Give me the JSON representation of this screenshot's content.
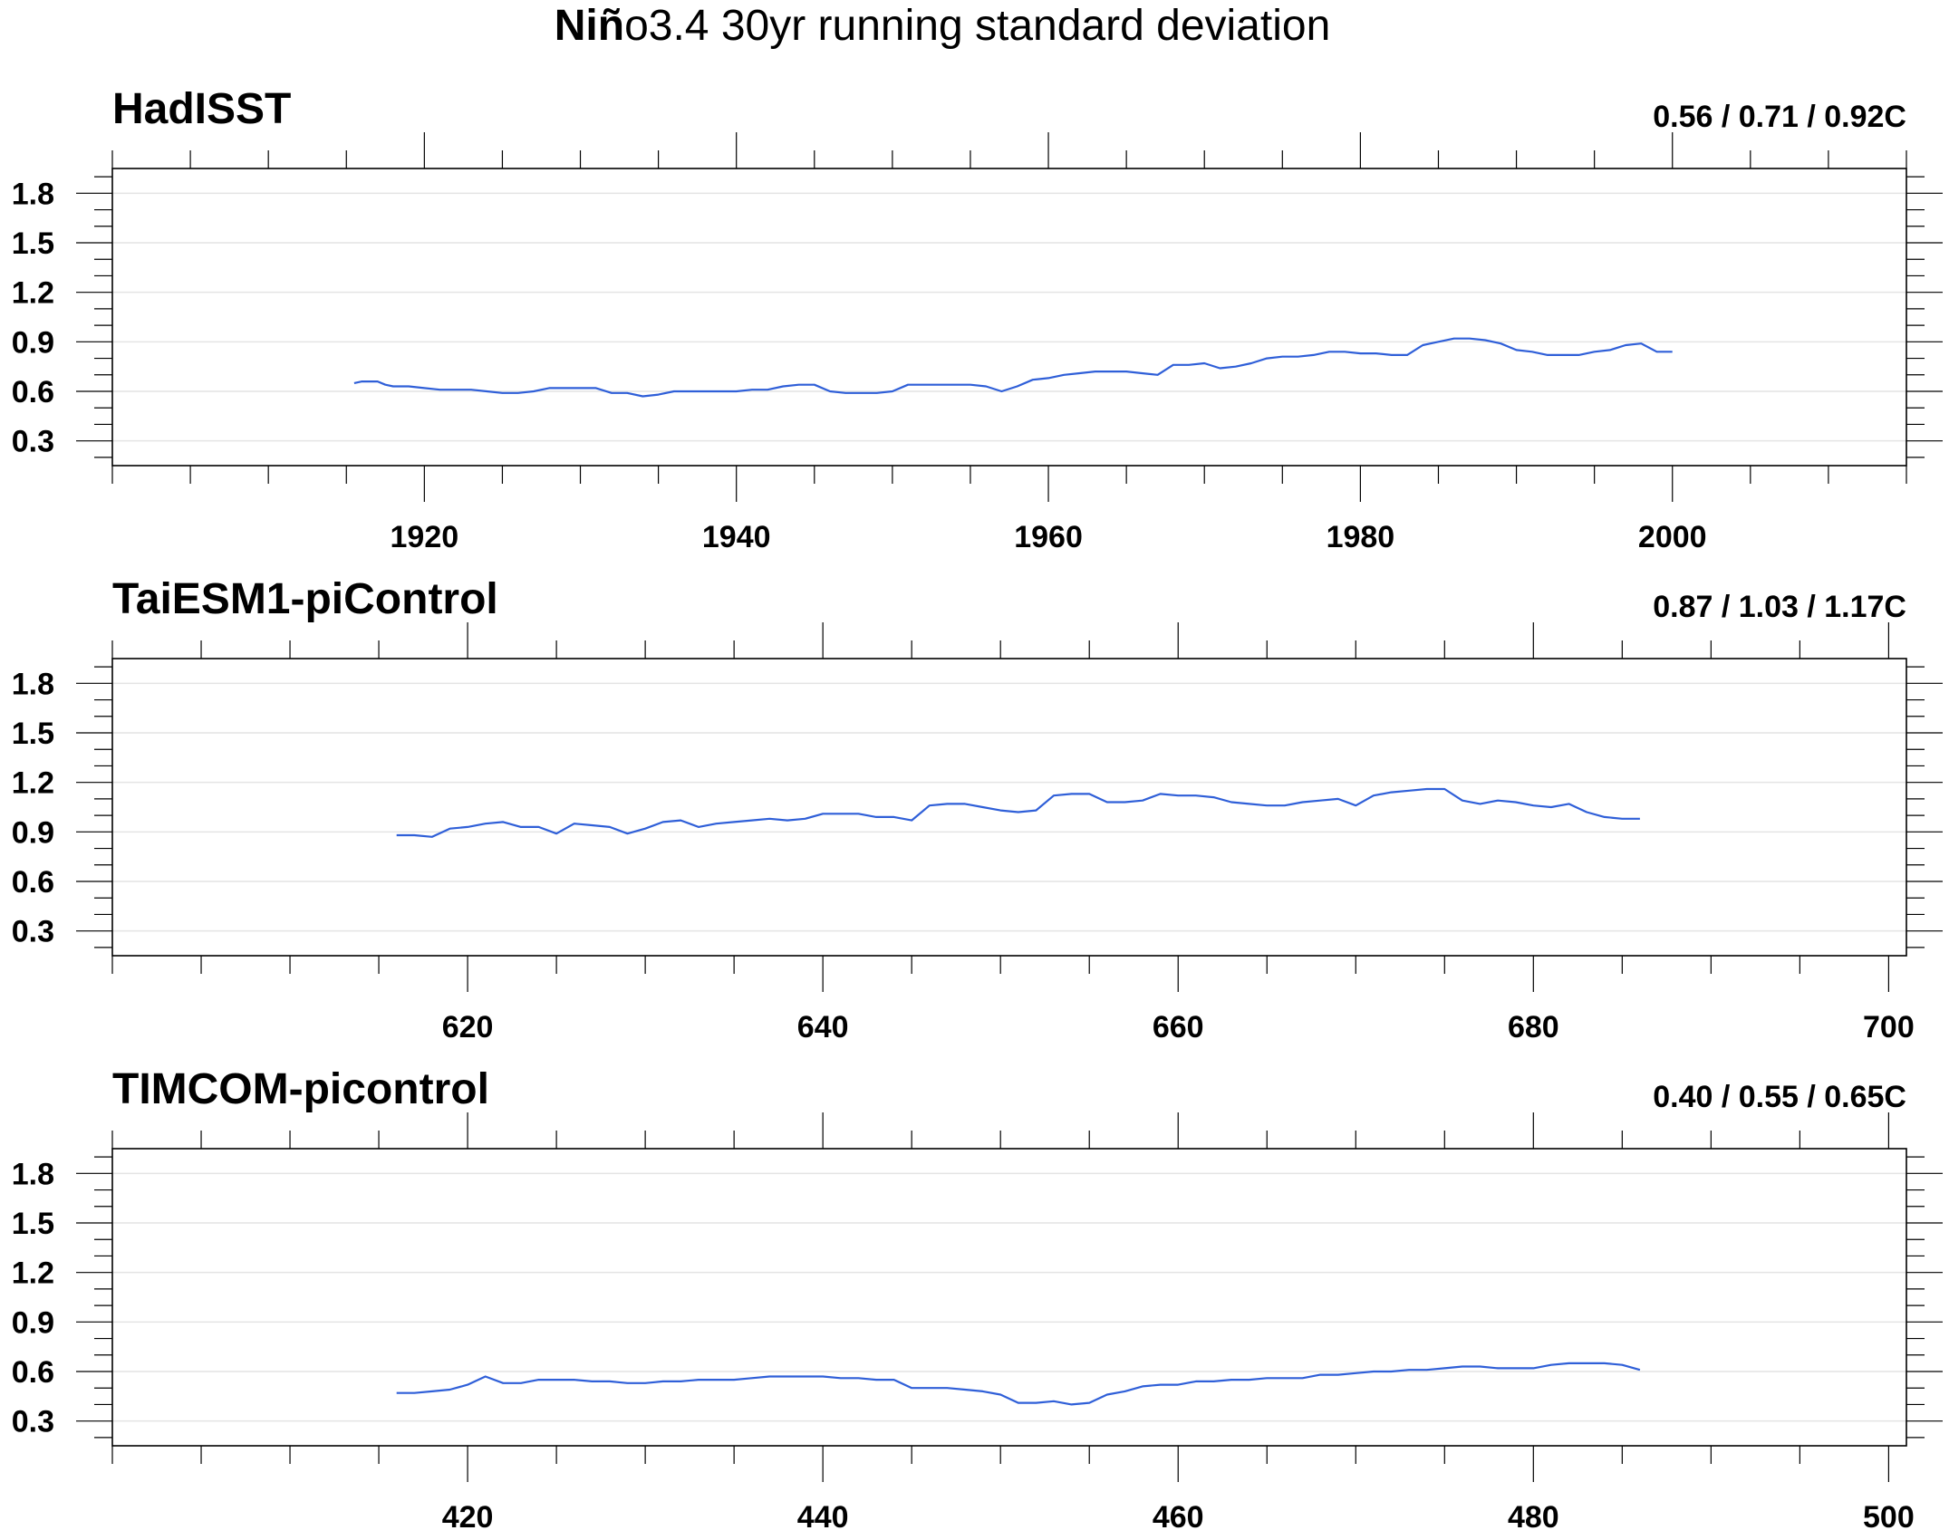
{
  "figure": {
    "title_bold": "Niñ",
    "title_rest": "o3.4 30yr running standard deviation"
  },
  "style": {
    "line_color": "#2f5fd8",
    "frame_color": "#000000",
    "grid_color": "#e4e4e4"
  },
  "chart_data": [
    {
      "type": "line",
      "title": "HadISST",
      "stats": "0.56 / 0.71 / 0.92C",
      "xlabel": "",
      "ylabel": "",
      "xlim": [
        1900,
        2015
      ],
      "ylim": [
        0.15,
        1.95
      ],
      "x_ticks": [
        1920,
        1940,
        1960,
        1980,
        2000
      ],
      "y_ticks": [
        0.3,
        0.6,
        0.9,
        1.2,
        1.5,
        1.8
      ],
      "y_tick_labels": [
        "0.3",
        "0.6",
        "0.9",
        "1.2",
        "1.5",
        "1.8"
      ],
      "grid": true,
      "series": [
        {
          "x": [
            1915.5,
            1916,
            1917,
            1917.5,
            1918,
            1919,
            1920,
            1921,
            1922,
            1923,
            1924,
            1925,
            1926,
            1927,
            1928,
            1929,
            1930,
            1931,
            1932,
            1933,
            1934,
            1935,
            1936,
            1937,
            1938,
            1939,
            1940,
            1941,
            1942,
            1943,
            1944,
            1945,
            1946,
            1947,
            1948,
            1949,
            1950,
            1951,
            1952,
            1953,
            1954,
            1955,
            1956,
            1957,
            1958,
            1959,
            1960,
            1961,
            1962,
            1963,
            1964,
            1965,
            1966,
            1967,
            1968,
            1969,
            1970,
            1971,
            1972,
            1973,
            1974,
            1975,
            1976,
            1977,
            1978,
            1979,
            1980,
            1981,
            1982,
            1983,
            1984,
            1985,
            1986,
            1987,
            1988,
            1989,
            1990,
            1991,
            1992,
            1993,
            1994,
            1995,
            1996,
            1997,
            1998,
            1999,
            2000
          ],
          "y": [
            0.65,
            0.66,
            0.66,
            0.64,
            0.63,
            0.63,
            0.62,
            0.61,
            0.61,
            0.61,
            0.6,
            0.59,
            0.59,
            0.6,
            0.62,
            0.62,
            0.62,
            0.62,
            0.59,
            0.59,
            0.57,
            0.58,
            0.6,
            0.6,
            0.6,
            0.6,
            0.6,
            0.61,
            0.61,
            0.63,
            0.64,
            0.64,
            0.6,
            0.59,
            0.59,
            0.59,
            0.6,
            0.64,
            0.64,
            0.64,
            0.64,
            0.64,
            0.63,
            0.6,
            0.63,
            0.67,
            0.68,
            0.7,
            0.71,
            0.72,
            0.72,
            0.72,
            0.71,
            0.7,
            0.76,
            0.76,
            0.77,
            0.74,
            0.75,
            0.77,
            0.8,
            0.81,
            0.81,
            0.82,
            0.84,
            0.84,
            0.83,
            0.83,
            0.82,
            0.82,
            0.88,
            0.9,
            0.92,
            0.92,
            0.91,
            0.89,
            0.85,
            0.84,
            0.82,
            0.82,
            0.82,
            0.84,
            0.85,
            0.88,
            0.89,
            0.84,
            0.84
          ]
        }
      ]
    },
    {
      "type": "line",
      "title": "TaiESM1-piControl",
      "stats": "0.87 / 1.03 / 1.17C",
      "xlabel": "",
      "ylabel": "",
      "xlim": [
        600,
        701
      ],
      "ylim": [
        0.15,
        1.95
      ],
      "x_ticks": [
        620,
        640,
        660,
        680,
        700
      ],
      "y_ticks": [
        0.3,
        0.6,
        0.9,
        1.2,
        1.5,
        1.8
      ],
      "y_tick_labels": [
        "0.3",
        "0.6",
        "0.9",
        "1.2",
        "1.5",
        "1.8"
      ],
      "grid": true,
      "series": [
        {
          "x": [
            616,
            617,
            618,
            619,
            620,
            621,
            622,
            623,
            624,
            625,
            626,
            627,
            628,
            629,
            630,
            631,
            632,
            633,
            634,
            635,
            636,
            637,
            638,
            639,
            640,
            641,
            642,
            643,
            644,
            645,
            646,
            647,
            648,
            649,
            650,
            651,
            652,
            653,
            654,
            655,
            656,
            657,
            658,
            659,
            660,
            661,
            662,
            663,
            664,
            665,
            666,
            667,
            668,
            669,
            670,
            671,
            672,
            673,
            674,
            675,
            676,
            677,
            678,
            679,
            680,
            681,
            682,
            683,
            684,
            685,
            686
          ],
          "y": [
            0.88,
            0.88,
            0.87,
            0.92,
            0.93,
            0.95,
            0.96,
            0.93,
            0.93,
            0.89,
            0.95,
            0.94,
            0.93,
            0.89,
            0.92,
            0.96,
            0.97,
            0.93,
            0.95,
            0.96,
            0.97,
            0.98,
            0.97,
            0.98,
            1.01,
            1.01,
            1.01,
            0.99,
            0.99,
            0.97,
            1.06,
            1.07,
            1.07,
            1.05,
            1.03,
            1.02,
            1.03,
            1.12,
            1.13,
            1.13,
            1.08,
            1.08,
            1.09,
            1.13,
            1.12,
            1.12,
            1.11,
            1.08,
            1.07,
            1.06,
            1.06,
            1.08,
            1.09,
            1.1,
            1.06,
            1.12,
            1.14,
            1.15,
            1.16,
            1.16,
            1.09,
            1.07,
            1.09,
            1.08,
            1.06,
            1.05,
            1.07,
            1.02,
            0.99,
            0.98,
            0.98
          ]
        }
      ]
    },
    {
      "type": "line",
      "title": "TIMCOM-picontrol",
      "stats": "0.40 / 0.55 / 0.65C",
      "xlabel": "",
      "ylabel": "",
      "xlim": [
        400,
        501
      ],
      "ylim": [
        0.15,
        1.95
      ],
      "x_ticks": [
        420,
        440,
        460,
        480,
        500
      ],
      "y_ticks": [
        0.3,
        0.6,
        0.9,
        1.2,
        1.5,
        1.8
      ],
      "y_tick_labels": [
        "0.3",
        "0.6",
        "0.9",
        "1.2",
        "1.5",
        "1.8"
      ],
      "grid": true,
      "series": [
        {
          "x": [
            416,
            417,
            418,
            419,
            420,
            421,
            422,
            423,
            424,
            425,
            426,
            427,
            428,
            429,
            430,
            431,
            432,
            433,
            434,
            435,
            436,
            437,
            438,
            439,
            440,
            441,
            442,
            443,
            444,
            445,
            446,
            447,
            448,
            449,
            450,
            451,
            452,
            453,
            454,
            455,
            456,
            457,
            458,
            459,
            460,
            461,
            462,
            463,
            464,
            465,
            466,
            467,
            468,
            469,
            470,
            471,
            472,
            473,
            474,
            475,
            476,
            477,
            478,
            479,
            480,
            481,
            482,
            483,
            484,
            485,
            486
          ],
          "y": [
            0.47,
            0.47,
            0.48,
            0.49,
            0.52,
            0.57,
            0.53,
            0.53,
            0.55,
            0.55,
            0.55,
            0.54,
            0.54,
            0.53,
            0.53,
            0.54,
            0.54,
            0.55,
            0.55,
            0.55,
            0.56,
            0.57,
            0.57,
            0.57,
            0.57,
            0.56,
            0.56,
            0.55,
            0.55,
            0.5,
            0.5,
            0.5,
            0.49,
            0.48,
            0.46,
            0.41,
            0.41,
            0.42,
            0.4,
            0.41,
            0.46,
            0.48,
            0.51,
            0.52,
            0.52,
            0.54,
            0.54,
            0.55,
            0.55,
            0.56,
            0.56,
            0.56,
            0.58,
            0.58,
            0.59,
            0.6,
            0.6,
            0.61,
            0.61,
            0.62,
            0.63,
            0.63,
            0.62,
            0.62,
            0.62,
            0.64,
            0.65,
            0.65,
            0.65,
            0.64,
            0.61
          ]
        }
      ]
    }
  ]
}
